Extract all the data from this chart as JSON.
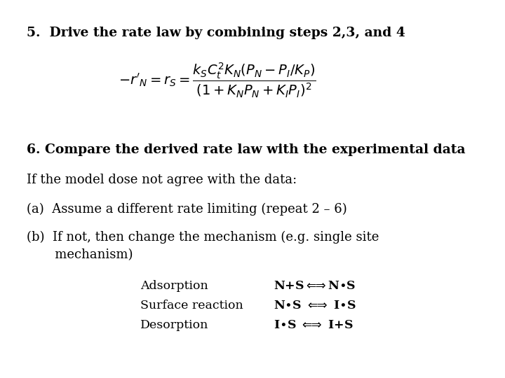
{
  "bg_color": "#ffffff",
  "text_color": "#000000",
  "title1": "5.  Drive the rate law by combining steps 2,3, and 4",
  "title1_fontsize": 13.5,
  "heading2": "6. Compare the derived rate law with the experimental data",
  "heading2_fontsize": 13.5,
  "line3": "If the model dose not agree with the data:",
  "line3_fontsize": 13,
  "line4": "(a)  Assume a different rate limiting (repeat 2 – 6)",
  "line4_fontsize": 13,
  "line5a": "(b)  If not, then change the mechanism (e.g. single site",
  "line5b": "       mechanism)",
  "line5_fontsize": 13,
  "adsorption_label": "Adsorption",
  "surface_label": "Surface reaction",
  "desorption_label": "Desorption",
  "table_fontsize": 12.5,
  "eq_fontsize": 14
}
